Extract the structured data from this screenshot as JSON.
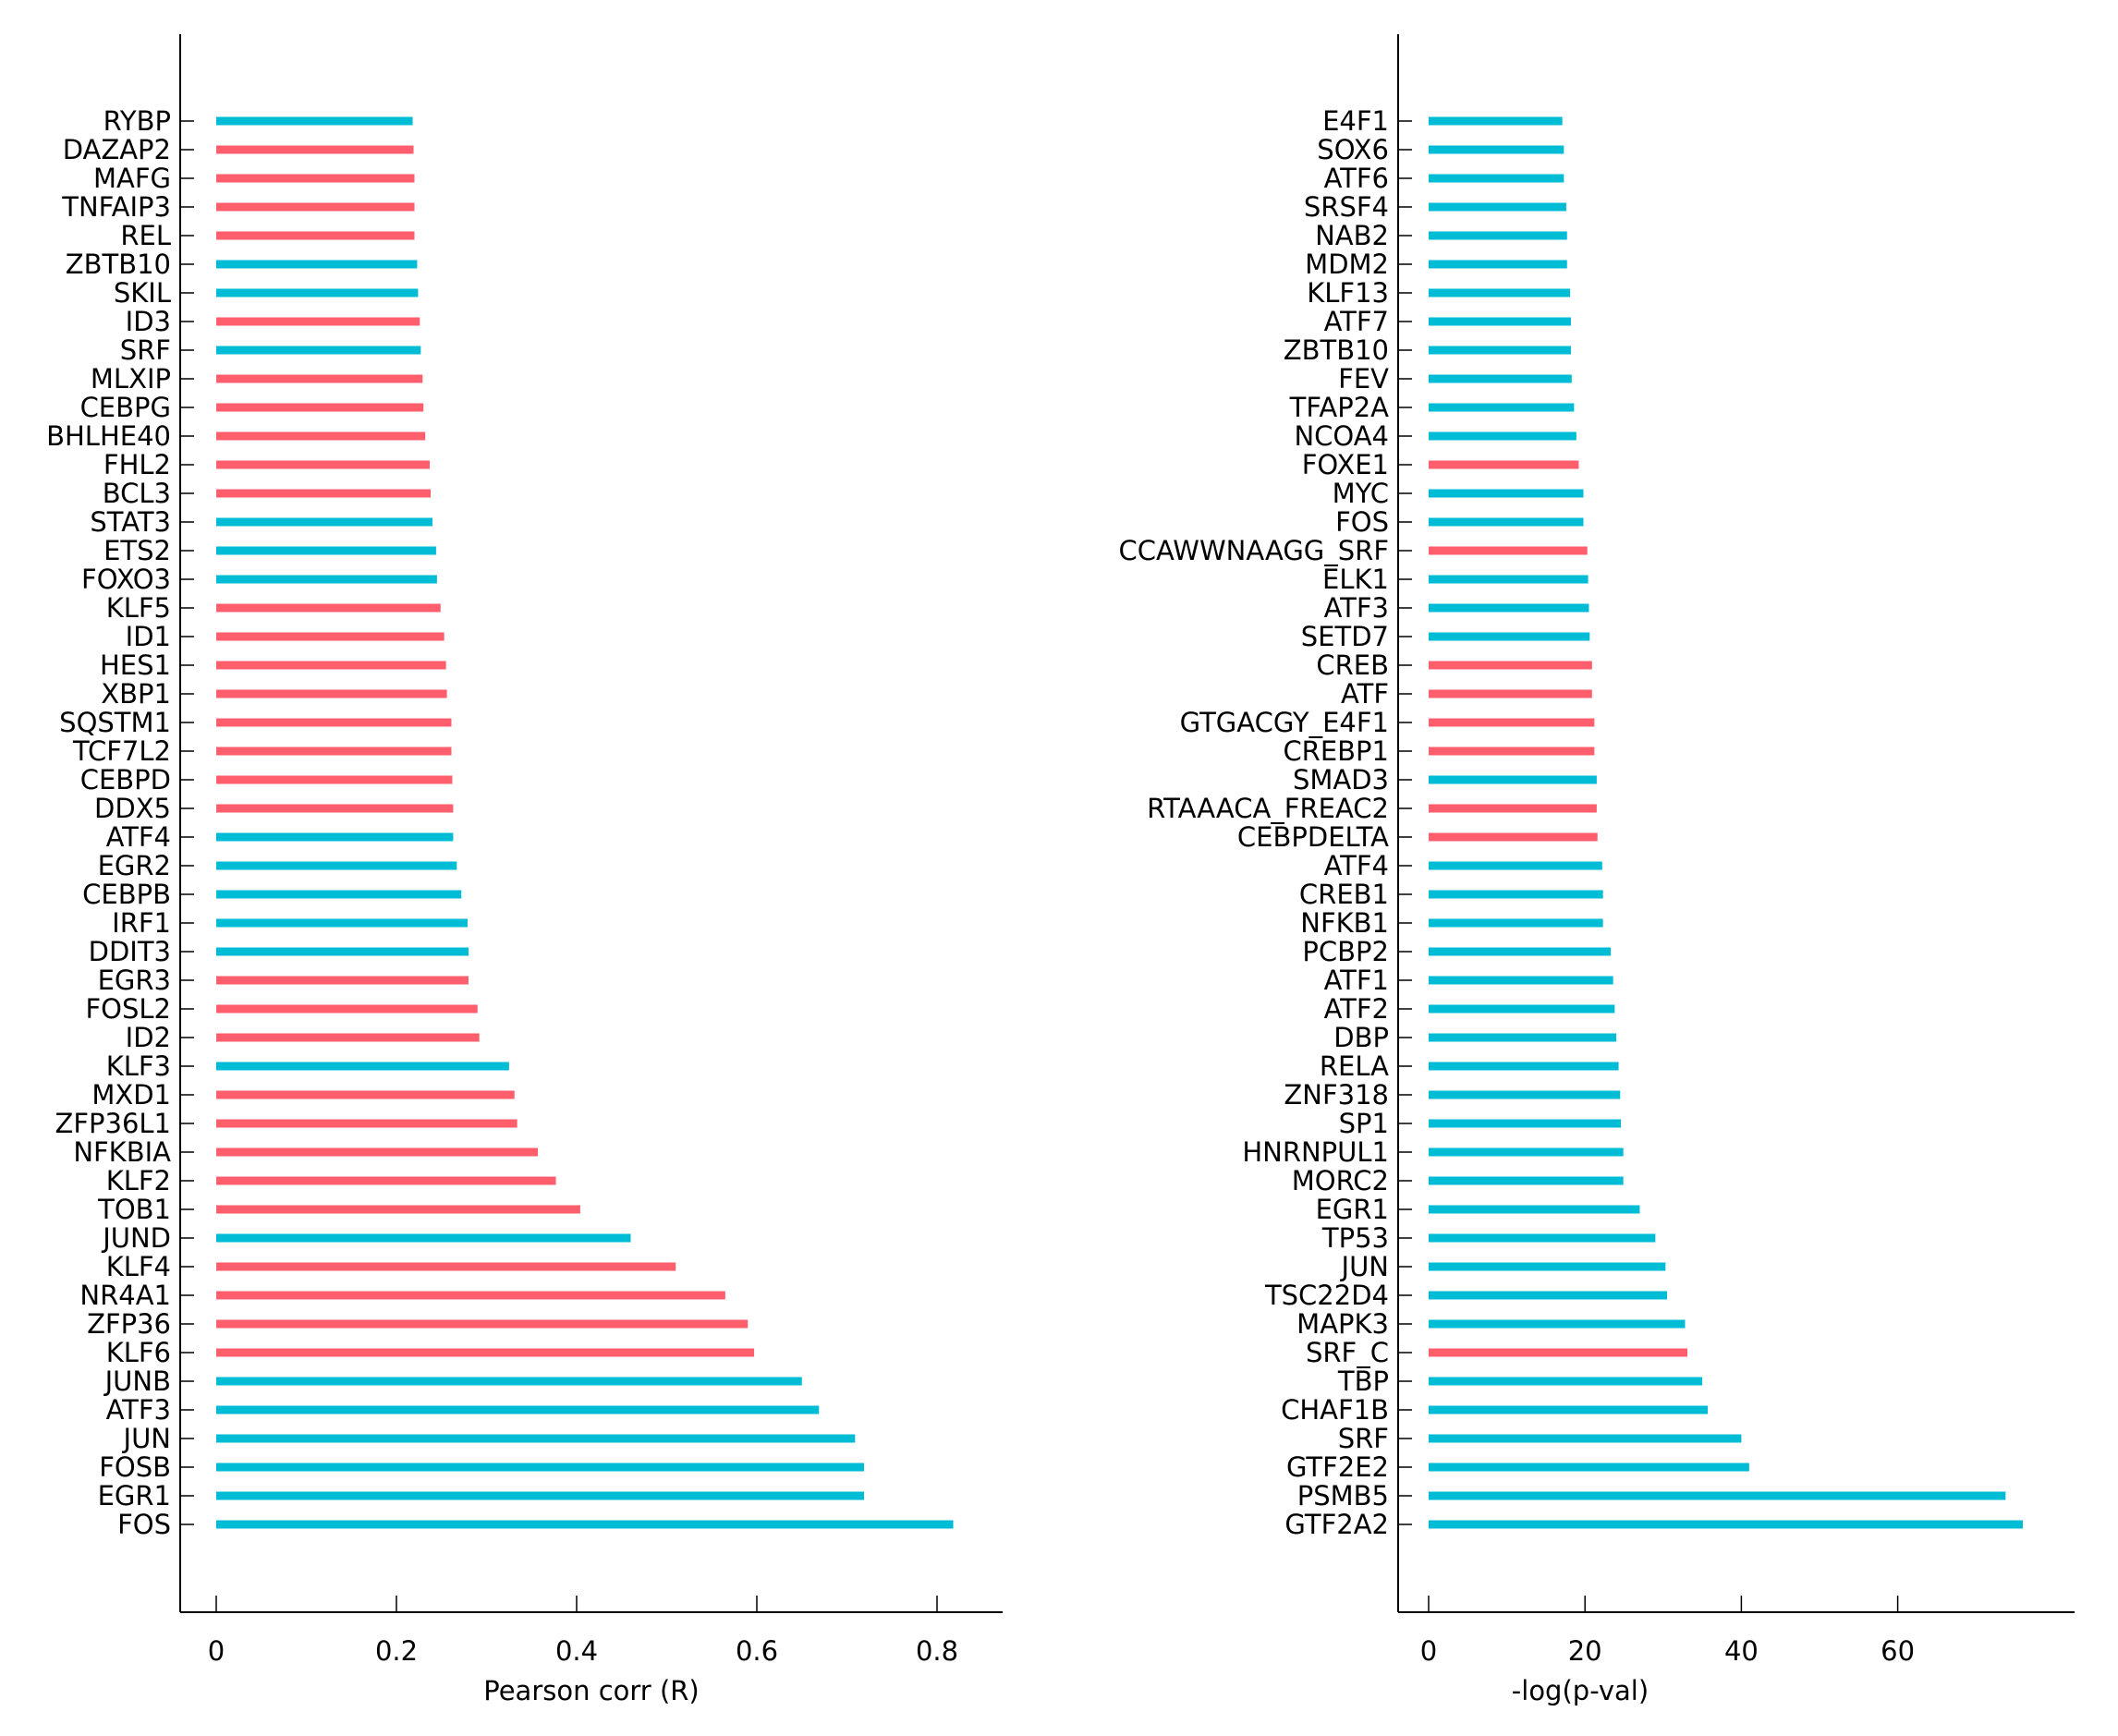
{
  "chart_data": [
    {
      "type": "bar",
      "orientation": "horizontal",
      "title": "",
      "xlabel": "Pearson corr (R)",
      "ylabel": "",
      "xlim": [
        -0.04,
        0.86
      ],
      "xticks": [
        0,
        0.2,
        0.4,
        0.6,
        0.8
      ],
      "xtick_labels": [
        "0",
        "0.2",
        "0.4",
        "0.6",
        "0.8"
      ],
      "grid": false,
      "legend": "none",
      "colors": {
        "positive": "#00bcd4",
        "negative": "#ff5e6c"
      },
      "categories": [
        "RYBP",
        "DAZAP2",
        "MAFG",
        "TNFAIP3",
        "REL",
        "ZBTB10",
        "SKIL",
        "ID3",
        "SRF",
        "MLXIP",
        "CEBPG",
        "BHLHE40",
        "FHL2",
        "BCL3",
        "STAT3",
        "ETS2",
        "FOXO3",
        "KLF5",
        "ID1",
        "HES1",
        "XBP1",
        "SQSTM1",
        "TCF7L2",
        "CEBPD",
        "DDX5",
        "ATF4",
        "EGR2",
        "CEBPB",
        "IRF1",
        "DDIT3",
        "EGR3",
        "FOSL2",
        "ID2",
        "KLF3",
        "MXD1",
        "ZFP36L1",
        "NFKBIA",
        "KLF2",
        "TOB1",
        "JUND",
        "KLF4",
        "NR4A1",
        "ZFP36",
        "KLF6",
        "JUNB",
        "ATF3",
        "JUN",
        "FOSB",
        "EGR1",
        "FOS"
      ],
      "values": [
        0.218,
        0.219,
        0.22,
        0.22,
        0.22,
        0.223,
        0.224,
        0.226,
        0.227,
        0.229,
        0.23,
        0.232,
        0.237,
        0.238,
        0.24,
        0.244,
        0.245,
        0.249,
        0.253,
        0.255,
        0.256,
        0.261,
        0.261,
        0.262,
        0.263,
        0.263,
        0.267,
        0.272,
        0.279,
        0.28,
        0.28,
        0.29,
        0.292,
        0.325,
        0.331,
        0.334,
        0.357,
        0.377,
        0.404,
        0.46,
        0.51,
        0.565,
        0.59,
        0.597,
        0.65,
        0.669,
        0.709,
        0.719,
        0.719,
        0.818
      ],
      "color_groups": [
        "positive",
        "negative",
        "negative",
        "negative",
        "negative",
        "positive",
        "positive",
        "negative",
        "positive",
        "negative",
        "negative",
        "negative",
        "negative",
        "negative",
        "positive",
        "positive",
        "positive",
        "negative",
        "negative",
        "negative",
        "negative",
        "negative",
        "negative",
        "negative",
        "negative",
        "positive",
        "positive",
        "positive",
        "positive",
        "positive",
        "negative",
        "negative",
        "negative",
        "positive",
        "negative",
        "negative",
        "negative",
        "negative",
        "negative",
        "positive",
        "negative",
        "negative",
        "negative",
        "negative",
        "positive",
        "positive",
        "positive",
        "positive",
        "positive",
        "positive"
      ]
    },
    {
      "type": "bar",
      "orientation": "horizontal",
      "title": "",
      "xlabel": "-log(p-val)",
      "ylabel": "",
      "xlim": [
        -3.8,
        79
      ],
      "xticks": [
        0,
        20,
        40,
        60
      ],
      "xtick_labels": [
        "0",
        "20",
        "40",
        "60"
      ],
      "grid": false,
      "legend": "none",
      "colors": {
        "positive": "#00bcd4",
        "negative": "#ff5e6c"
      },
      "categories": [
        "E4F1",
        "SOX6",
        "ATF6",
        "SRSF4",
        "NAB2",
        "MDM2",
        "KLF13",
        "ATF7",
        "ZBTB10",
        "FEV",
        "TFAP2A",
        "NCOA4",
        "FOXE1",
        "MYC",
        "FOS",
        "CCAWWNAAGG_SRF",
        "ELK1",
        "ATF3",
        "SETD7",
        "CREB",
        "ATF",
        "GTGACGY_E4F1",
        "CREBP1",
        "SMAD3",
        "RTAAACA_FREAC2",
        "CEBPDELTA",
        "ATF4",
        "CREB1",
        "NFKB1",
        "PCBP2",
        "ATF1",
        "ATF2",
        "DBP",
        "RELA",
        "ZNF318",
        "SP1",
        "HNRNPUL1",
        "MORC2",
        "EGR1",
        "TP53",
        "JUN",
        "TSC22D4",
        "MAPK3",
        "SRF_C",
        "TBP",
        "CHAF1B",
        "SRF",
        "GTF2E2",
        "PSMB5",
        "GTF2A2"
      ],
      "values": [
        17.1,
        17.3,
        17.3,
        17.6,
        17.7,
        17.7,
        18.1,
        18.2,
        18.2,
        18.3,
        18.6,
        18.9,
        19.2,
        19.8,
        19.8,
        20.3,
        20.4,
        20.5,
        20.6,
        20.9,
        20.9,
        21.2,
        21.2,
        21.5,
        21.5,
        21.6,
        22.2,
        22.3,
        22.3,
        23.3,
        23.6,
        23.8,
        24.0,
        24.3,
        24.5,
        24.6,
        24.9,
        24.9,
        27.0,
        29.0,
        30.3,
        30.5,
        32.8,
        33.1,
        35.0,
        35.7,
        40.0,
        41.0,
        73.8,
        76.0
      ],
      "color_groups": [
        "positive",
        "positive",
        "positive",
        "positive",
        "positive",
        "positive",
        "positive",
        "positive",
        "positive",
        "positive",
        "positive",
        "positive",
        "negative",
        "positive",
        "positive",
        "negative",
        "positive",
        "positive",
        "positive",
        "negative",
        "negative",
        "negative",
        "negative",
        "positive",
        "negative",
        "negative",
        "positive",
        "positive",
        "positive",
        "positive",
        "positive",
        "positive",
        "positive",
        "positive",
        "positive",
        "positive",
        "positive",
        "positive",
        "positive",
        "positive",
        "positive",
        "positive",
        "positive",
        "negative",
        "positive",
        "positive",
        "positive",
        "positive",
        "positive",
        "positive"
      ]
    }
  ]
}
